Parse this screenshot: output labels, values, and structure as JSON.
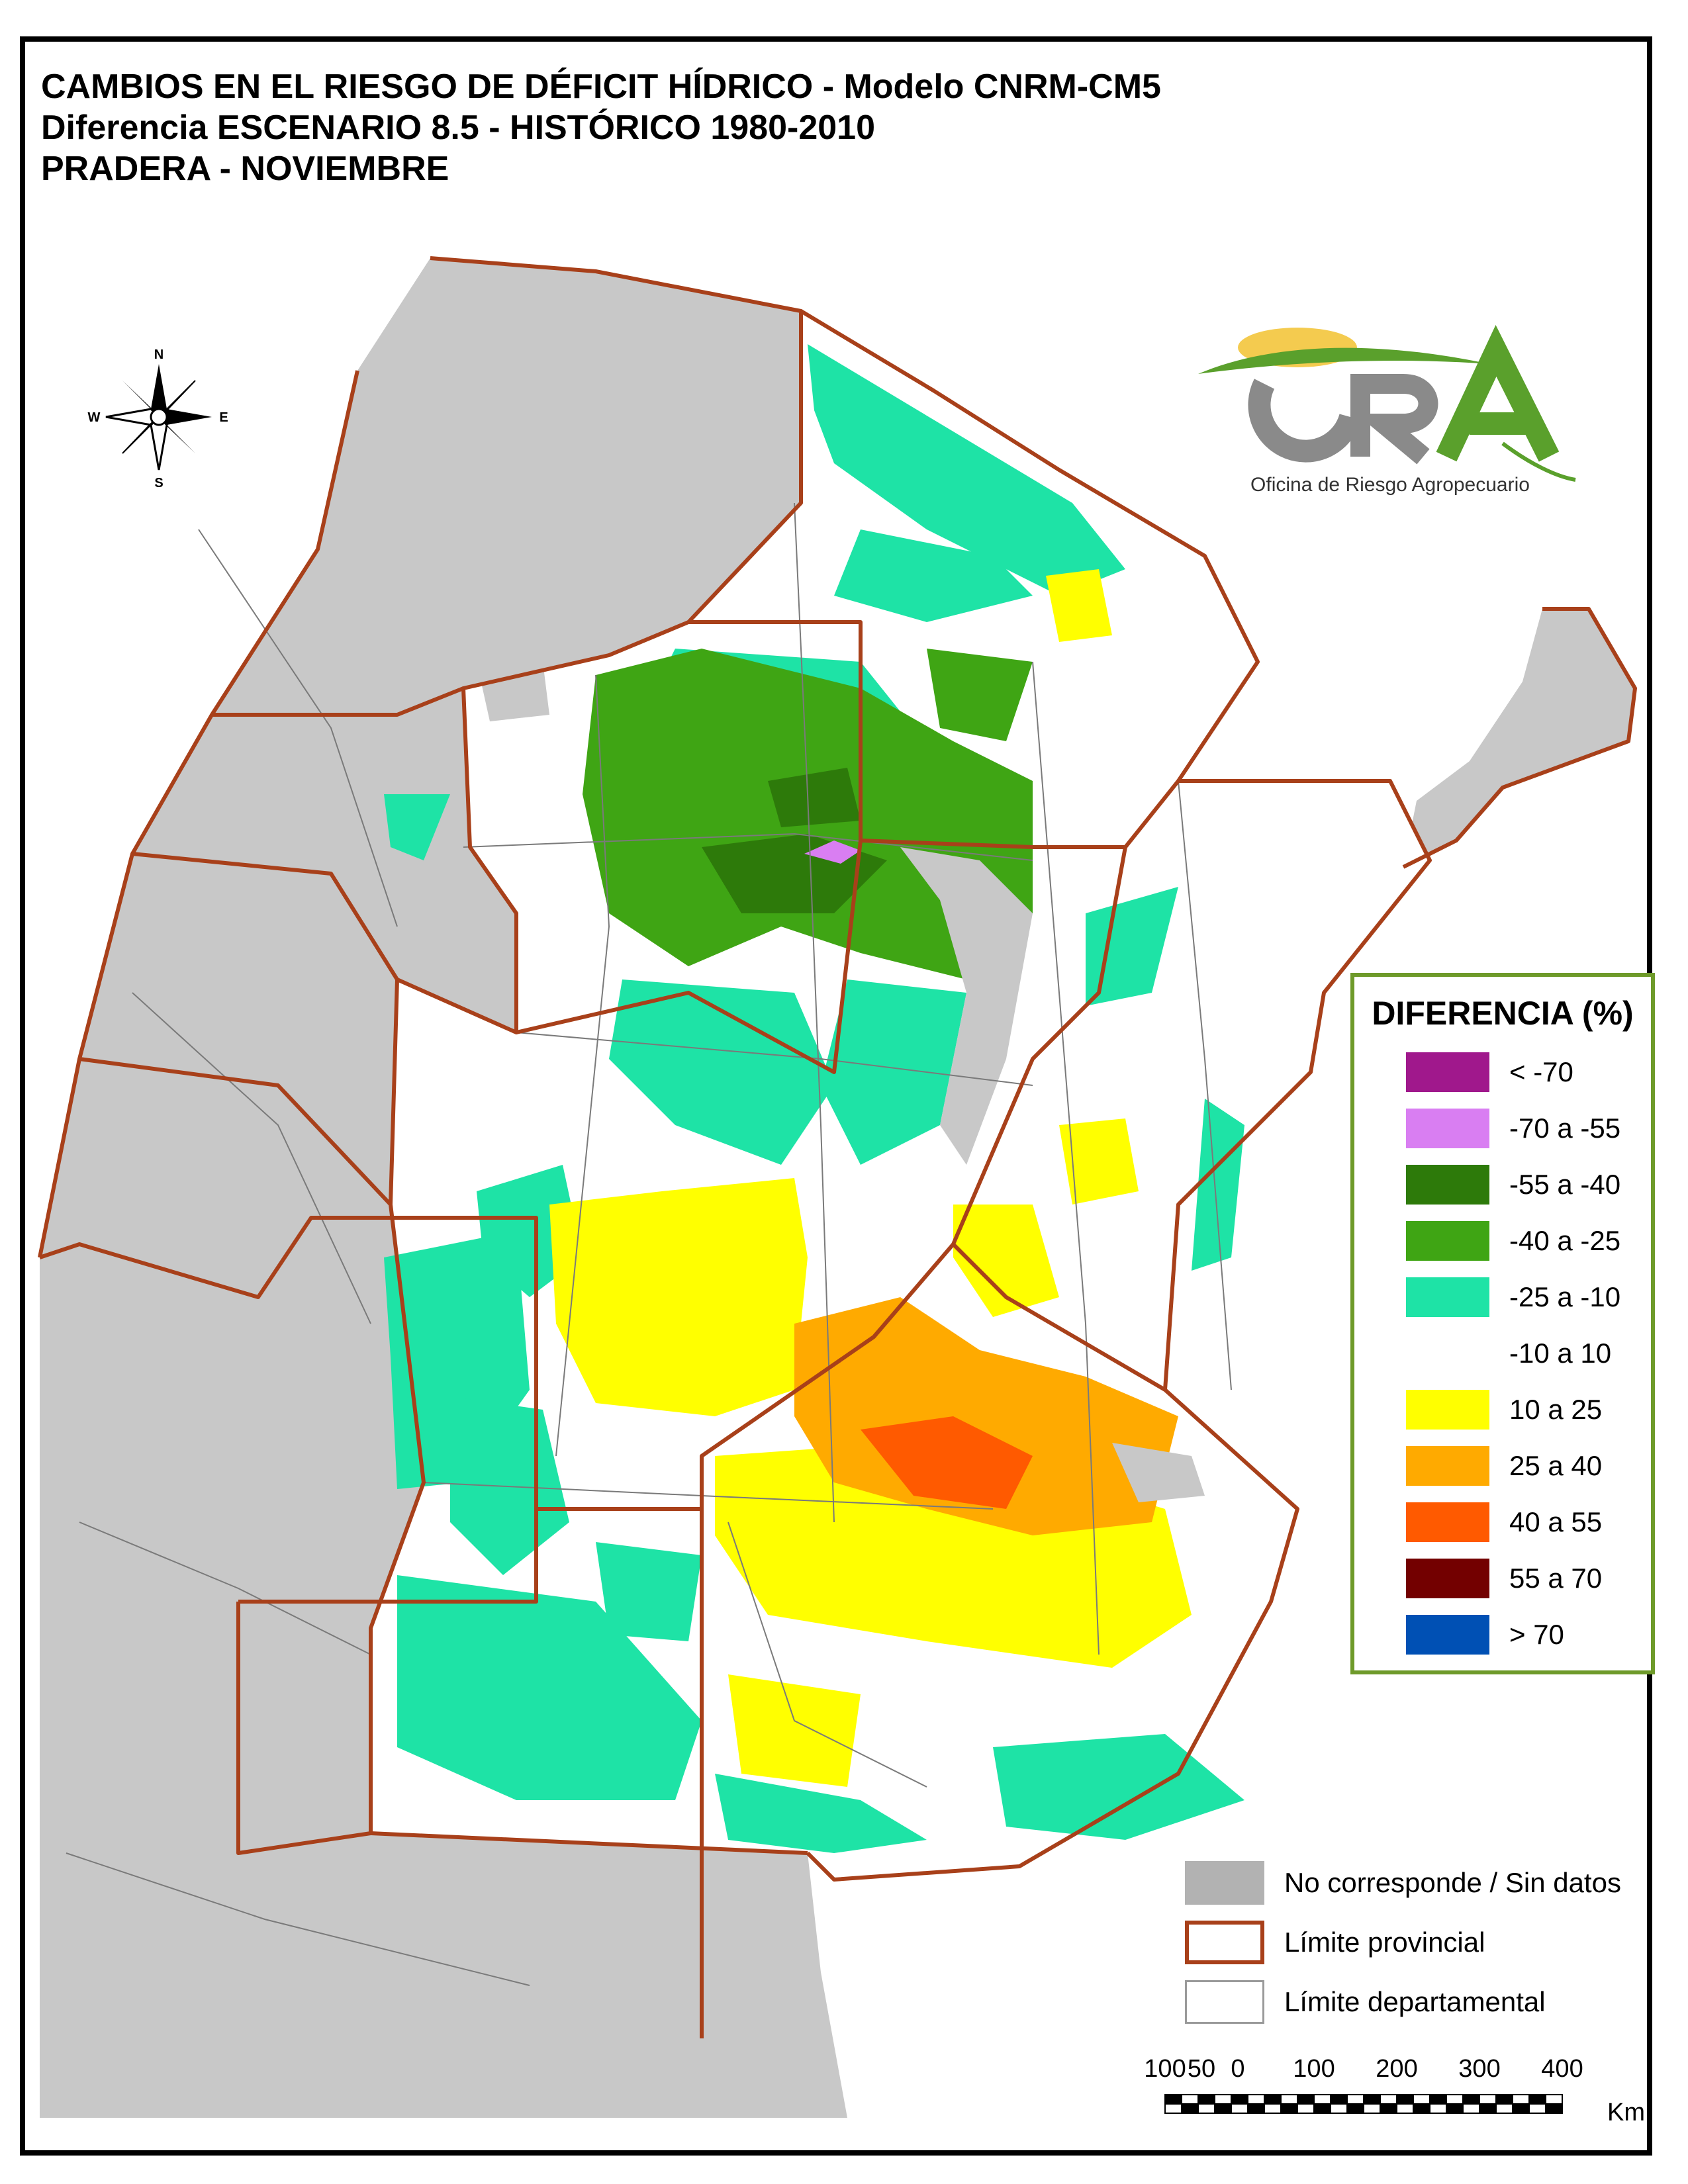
{
  "title": {
    "line1": "CAMBIOS EN EL RIESGO DE DÉFICIT HÍDRICO - Modelo CNRM-CM5",
    "line2": "Diferencia ESCENARIO 8.5 - HISTÓRICO 1980-2010",
    "line3": "PRADERA - NOVIEMBRE"
  },
  "compass": {
    "n": "N",
    "s": "S",
    "e": "E",
    "w": "W"
  },
  "logo": {
    "text": "Oficina de Riesgo Agropecuario",
    "colors": {
      "gray": "#8a8a8a",
      "green": "#5aa02c",
      "yellow": "#f2c230"
    }
  },
  "legend": {
    "title": "DIFERENCIA (%)",
    "items": [
      {
        "label": "< -70",
        "color": "#a0188c"
      },
      {
        "label": "-70 a -55",
        "color": "#d97ef2"
      },
      {
        "label": "-55 a -40",
        "color": "#2d7a0a"
      },
      {
        "label": "-40 a -25",
        "color": "#3fa514"
      },
      {
        "label": "-25 a -10",
        "color": "#1ee3a6"
      },
      {
        "label": "-10 a 10",
        "color": "#ffffff"
      },
      {
        "label": "10 a 25",
        "color": "#ffff00"
      },
      {
        "label": "25 a 40",
        "color": "#ffaa00"
      },
      {
        "label": "40 a 55",
        "color": "#ff5a00"
      },
      {
        "label": "55 a 70",
        "color": "#730000"
      },
      {
        "label": "> 70",
        "color": "#0050b4"
      }
    ]
  },
  "legend2": {
    "items": [
      {
        "label": "No corresponde / Sin datos",
        "kind": "fill",
        "color": "#b2b2b2"
      },
      {
        "label": "Límite provincial",
        "kind": "outline",
        "color": "#a8401a"
      },
      {
        "label": "Límite departamental",
        "kind": "outline",
        "color": "#9a9a9a"
      }
    ]
  },
  "scale": {
    "ticks": [
      "100",
      "50",
      "0",
      "100",
      "200",
      "300",
      "400"
    ],
    "unit": "Km"
  },
  "map_colors": {
    "province_border": "#a8401a",
    "no_data": "#c8c8c8",
    "dept_line": "#7a7a7a"
  }
}
